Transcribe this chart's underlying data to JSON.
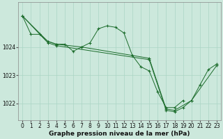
{
  "bg_color": "#cce8dc",
  "grid_color": "#aad4c4",
  "line_color": "#1a6b2a",
  "marker_color": "#1a6b2a",
  "xlabel": "Graphe pression niveau de la mer (hPa)",
  "xlabel_fontsize": 6.5,
  "xlim": [
    -0.5,
    23.5
  ],
  "ylim": [
    1021.4,
    1025.6
  ],
  "yticks": [
    1022,
    1023,
    1024
  ],
  "ytick_labels": [
    "1022",
    "1023",
    "1024"
  ],
  "xticks": [
    0,
    1,
    2,
    3,
    4,
    5,
    6,
    7,
    8,
    9,
    10,
    11,
    12,
    13,
    14,
    15,
    16,
    17,
    18,
    19,
    20,
    21,
    22,
    23
  ],
  "tick_fontsize": 5.5,
  "series": [
    {
      "x": [
        0,
        1,
        2,
        3,
        4,
        5,
        6,
        7,
        8,
        9,
        10,
        11,
        12,
        13,
        14,
        15,
        16,
        17,
        18,
        19
      ],
      "y": [
        1025.1,
        1024.45,
        1024.45,
        1024.2,
        1024.1,
        1024.1,
        1023.85,
        1024.0,
        1024.15,
        1024.65,
        1024.75,
        1024.7,
        1024.5,
        1023.7,
        1023.3,
        1023.15,
        1022.4,
        1021.85,
        1021.85,
        1022.1
      ]
    },
    {
      "x": [
        0,
        3,
        4,
        7,
        15,
        17,
        18,
        20,
        21,
        22,
        23
      ],
      "y": [
        1025.1,
        1024.2,
        1024.1,
        1024.0,
        1023.6,
        1021.8,
        1021.75,
        1022.1,
        1022.65,
        1023.2,
        1023.4
      ]
    },
    {
      "x": [
        0,
        3,
        4,
        15,
        17,
        18,
        19,
        20,
        23
      ],
      "y": [
        1025.1,
        1024.15,
        1024.05,
        1023.55,
        1021.75,
        1021.7,
        1021.85,
        1022.1,
        1023.35
      ]
    }
  ]
}
